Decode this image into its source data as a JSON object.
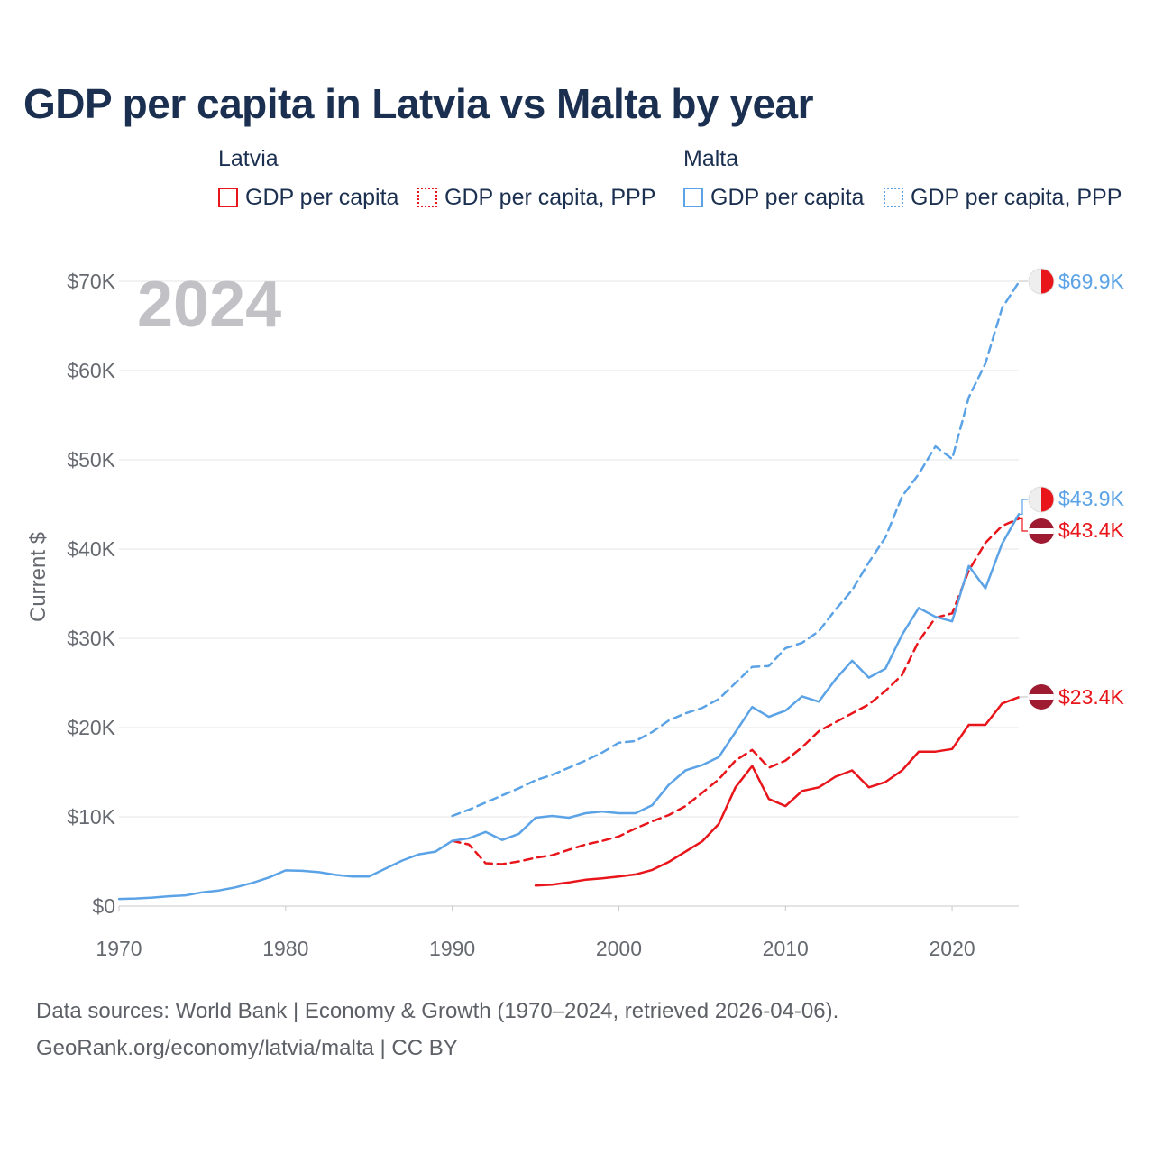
{
  "title": "GDP per capita in Latvia vs Malta by year",
  "legend": {
    "groups": [
      {
        "name": "Latvia",
        "items": [
          "GDP per capita",
          "GDP per capita, PPP"
        ],
        "color": "#e8151b"
      },
      {
        "name": "Malta",
        "items": [
          "GDP per capita",
          "GDP per capita, PPP"
        ],
        "color": "#5ba3e6"
      }
    ]
  },
  "footer": {
    "line1": "Data sources: World Bank | Economy & Growth (1970–2024, retrieved 2026-04-06).",
    "line2": "GeoRank.org/economy/latvia/malta | CC BY"
  },
  "chart_data": {
    "type": "line",
    "year_label": "2024",
    "ylabel": "Current $",
    "xlim": [
      1970,
      2024
    ],
    "ylim": [
      0,
      70000
    ],
    "x_ticks": [
      1970,
      1980,
      1990,
      2000,
      2010,
      2020
    ],
    "y_ticks": [
      {
        "value": 0,
        "label": "$0"
      },
      {
        "value": 10000,
        "label": "$10K"
      },
      {
        "value": 20000,
        "label": "$20K"
      },
      {
        "value": 30000,
        "label": "$30K"
      },
      {
        "value": 40000,
        "label": "$40K"
      },
      {
        "value": 50000,
        "label": "$50K"
      },
      {
        "value": 60000,
        "label": "$60K"
      },
      {
        "value": 70000,
        "label": "$70K"
      }
    ],
    "series": [
      {
        "name": "Latvia GDP per capita",
        "country": "Latvia",
        "color": "#e8151b",
        "dashed": false,
        "end_label": "$23.4K",
        "x": [
          1995,
          1996,
          1997,
          1998,
          1999,
          2000,
          2001,
          2002,
          2003,
          2004,
          2005,
          2006,
          2007,
          2008,
          2009,
          2010,
          2011,
          2012,
          2013,
          2014,
          2015,
          2016,
          2017,
          2018,
          2019,
          2020,
          2021,
          2022,
          2023,
          2024
        ],
        "values": [
          2300,
          2400,
          2650,
          2950,
          3100,
          3300,
          3550,
          4050,
          4950,
          6100,
          7250,
          9200,
          13300,
          15700,
          12000,
          11200,
          12900,
          13300,
          14500,
          15200,
          13300,
          13900,
          15200,
          17300,
          17300,
          17600,
          20300,
          20300,
          22700,
          23400
        ]
      },
      {
        "name": "Latvia GDP per capita, PPP",
        "country": "Latvia",
        "color": "#e8151b",
        "dashed": true,
        "end_label": "$43.4K",
        "x": [
          1990,
          1991,
          1992,
          1993,
          1994,
          1995,
          1996,
          1997,
          1998,
          1999,
          2000,
          2001,
          2002,
          2003,
          2004,
          2005,
          2006,
          2007,
          2008,
          2009,
          2010,
          2011,
          2012,
          2013,
          2014,
          2015,
          2016,
          2017,
          2018,
          2019,
          2020,
          2021,
          2022,
          2023,
          2024
        ],
        "values": [
          7300,
          6900,
          4800,
          4700,
          5000,
          5400,
          5700,
          6300,
          6900,
          7300,
          7800,
          8700,
          9500,
          10200,
          11200,
          12700,
          14200,
          16300,
          17500,
          15500,
          16300,
          17800,
          19600,
          20600,
          21600,
          22600,
          24100,
          25900,
          29700,
          32300,
          32800,
          37600,
          40700,
          42600,
          43400
        ]
      },
      {
        "name": "Malta GDP per capita",
        "country": "Malta",
        "color": "#5ba3e6",
        "dashed": false,
        "end_label": "$43.9K",
        "x": [
          1970,
          1971,
          1972,
          1973,
          1974,
          1975,
          1976,
          1977,
          1978,
          1979,
          1980,
          1981,
          1982,
          1983,
          1984,
          1985,
          1986,
          1987,
          1988,
          1989,
          1990,
          1991,
          1992,
          1993,
          1994,
          1995,
          1996,
          1997,
          1998,
          1999,
          2000,
          2001,
          2002,
          2003,
          2004,
          2005,
          2006,
          2007,
          2008,
          2009,
          2010,
          2011,
          2012,
          2013,
          2014,
          2015,
          2016,
          2017,
          2018,
          2019,
          2020,
          2021,
          2022,
          2023,
          2024
        ],
        "values": [
          800,
          850,
          950,
          1100,
          1200,
          1550,
          1750,
          2100,
          2600,
          3200,
          4000,
          3950,
          3800,
          3500,
          3300,
          3300,
          4200,
          5100,
          5800,
          6100,
          7300,
          7600,
          8300,
          7400,
          8100,
          9900,
          10100,
          9900,
          10400,
          10600,
          10400,
          10400,
          11300,
          13600,
          15200,
          15800,
          16700,
          19500,
          22300,
          21200,
          21900,
          23500,
          22900,
          25400,
          27500,
          25600,
          26600,
          30400,
          33400,
          32400,
          31900,
          38100,
          35600,
          40600,
          43900
        ]
      },
      {
        "name": "Malta GDP per capita, PPP",
        "country": "Malta",
        "color": "#5ba3e6",
        "dashed": true,
        "end_label": "$69.9K",
        "x": [
          1990,
          1991,
          1992,
          1993,
          1994,
          1995,
          1996,
          1997,
          1998,
          1999,
          2000,
          2001,
          2002,
          2003,
          2004,
          2005,
          2006,
          2007,
          2008,
          2009,
          2010,
          2011,
          2012,
          2013,
          2014,
          2015,
          2016,
          2017,
          2018,
          2019,
          2020,
          2021,
          2022,
          2023,
          2024
        ],
        "values": [
          10100,
          10800,
          11600,
          12400,
          13200,
          14100,
          14700,
          15500,
          16300,
          17200,
          18300,
          18500,
          19500,
          20800,
          21600,
          22200,
          23200,
          25000,
          26800,
          26900,
          28900,
          29500,
          30800,
          33200,
          35400,
          38500,
          41300,
          45900,
          48400,
          51500,
          50100,
          57000,
          60800,
          67000,
          69900
        ]
      }
    ]
  }
}
